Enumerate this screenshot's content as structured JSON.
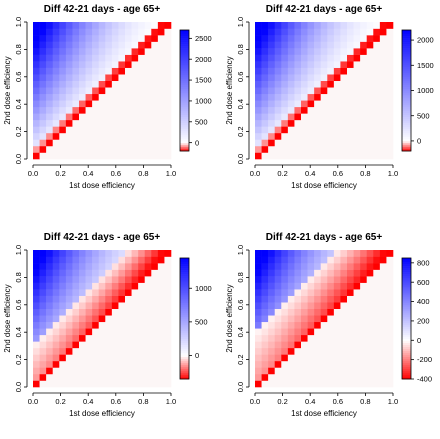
{
  "chart_data": [
    {
      "type": "heatmap",
      "title": "Diff 42-21 days - age 65+",
      "xlabel": "1st dose efficiency",
      "ylabel": "2nd dose efficiency",
      "x_ticks": [
        "0.0",
        "0.2",
        "0.4",
        "0.6",
        "0.8",
        "1.0"
      ],
      "y_ticks": [
        "0.0",
        "0.2",
        "0.4",
        "0.6",
        "0.8",
        "1.0"
      ],
      "xlim": [
        0,
        1
      ],
      "ylim": [
        0,
        1
      ],
      "grid_n": 21,
      "value_range": [
        -200,
        2700
      ],
      "colorbar_ticks": [
        {
          "value": 0,
          "label": "0"
        },
        {
          "value": 500,
          "label": "500"
        },
        {
          "value": 1000,
          "label": "1000"
        },
        {
          "value": 1500,
          "label": "1500"
        },
        {
          "value": 2000,
          "label": "2000"
        },
        {
          "value": 2500,
          "label": "2500"
        }
      ],
      "model": {
        "scale": 2700,
        "negative_amplitude": 200,
        "negative_band_width": 1
      },
      "colors": {
        "high": "#0000ff",
        "mid": "#ffffff",
        "low": "#ff0000",
        "below_diagonal": "#fcf6f6"
      }
    },
    {
      "type": "heatmap",
      "title": "Diff 42-21 days - age 65+",
      "xlabel": "1st dose efficiency",
      "ylabel": "2nd dose efficiency",
      "x_ticks": [
        "0.0",
        "0.2",
        "0.4",
        "0.6",
        "0.8",
        "1.0"
      ],
      "y_ticks": [
        "0.0",
        "0.2",
        "0.4",
        "0.6",
        "0.8",
        "1.0"
      ],
      "xlim": [
        0,
        1
      ],
      "ylim": [
        0,
        1
      ],
      "grid_n": 21,
      "value_range": [
        -200,
        2200
      ],
      "colorbar_ticks": [
        {
          "value": 0,
          "label": "0"
        },
        {
          "value": 500,
          "label": "500"
        },
        {
          "value": 1000,
          "label": "1000"
        },
        {
          "value": 1500,
          "label": "1500"
        },
        {
          "value": 2000,
          "label": "2000"
        }
      ],
      "model": {
        "scale": 2200,
        "negative_amplitude": 200,
        "negative_band_width": 1
      },
      "colors": {
        "high": "#0000ff",
        "mid": "#ffffff",
        "low": "#ff0000",
        "below_diagonal": "#fcf6f6"
      }
    },
    {
      "type": "heatmap",
      "title": "Diff 42-21 days - age 65+",
      "xlabel": "1st dose efficiency",
      "ylabel": "2nd dose efficiency",
      "x_ticks": [
        "0.0",
        "0.2",
        "0.4",
        "0.6",
        "0.8",
        "1.0"
      ],
      "y_ticks": [
        "0.0",
        "0.2",
        "0.4",
        "0.6",
        "0.8",
        "1.0"
      ],
      "xlim": [
        0,
        1
      ],
      "ylim": [
        0,
        1
      ],
      "grid_n": 21,
      "value_range": [
        -350,
        1450
      ],
      "colorbar_ticks": [
        {
          "value": 0,
          "label": "0"
        },
        {
          "value": 500,
          "label": "500"
        },
        {
          "value": 1000,
          "label": "1000"
        }
      ],
      "model": {
        "scale": 1450,
        "negative_amplitude": 350,
        "negative_band_width": 6
      },
      "colors": {
        "high": "#0000ff",
        "mid": "#ffffff",
        "low": "#ff0000",
        "below_diagonal": "#fcf6f6"
      }
    },
    {
      "type": "heatmap",
      "title": "Diff 42-21 days - age 65+",
      "xlabel": "1st dose efficiency",
      "ylabel": "2nd dose efficiency",
      "x_ticks": [
        "0.0",
        "0.2",
        "0.4",
        "0.6",
        "0.8",
        "1.0"
      ],
      "y_ticks": [
        "0.0",
        "0.2",
        "0.4",
        "0.6",
        "0.8",
        "1.0"
      ],
      "xlim": [
        0,
        1
      ],
      "ylim": [
        0,
        1
      ],
      "grid_n": 21,
      "value_range": [
        -400,
        850
      ],
      "colorbar_ticks": [
        {
          "value": -400,
          "label": "-400"
        },
        {
          "value": -200,
          "label": "-200"
        },
        {
          "value": 0,
          "label": "0"
        },
        {
          "value": 200,
          "label": "200"
        },
        {
          "value": 400,
          "label": "400"
        },
        {
          "value": 600,
          "label": "600"
        },
        {
          "value": 800,
          "label": "800"
        }
      ],
      "model": {
        "scale": 850,
        "negative_amplitude": 400,
        "negative_band_width": 8
      },
      "colors": {
        "high": "#0000ff",
        "mid": "#ffffff",
        "low": "#ff0000",
        "below_diagonal": "#fcf6f6"
      }
    }
  ]
}
